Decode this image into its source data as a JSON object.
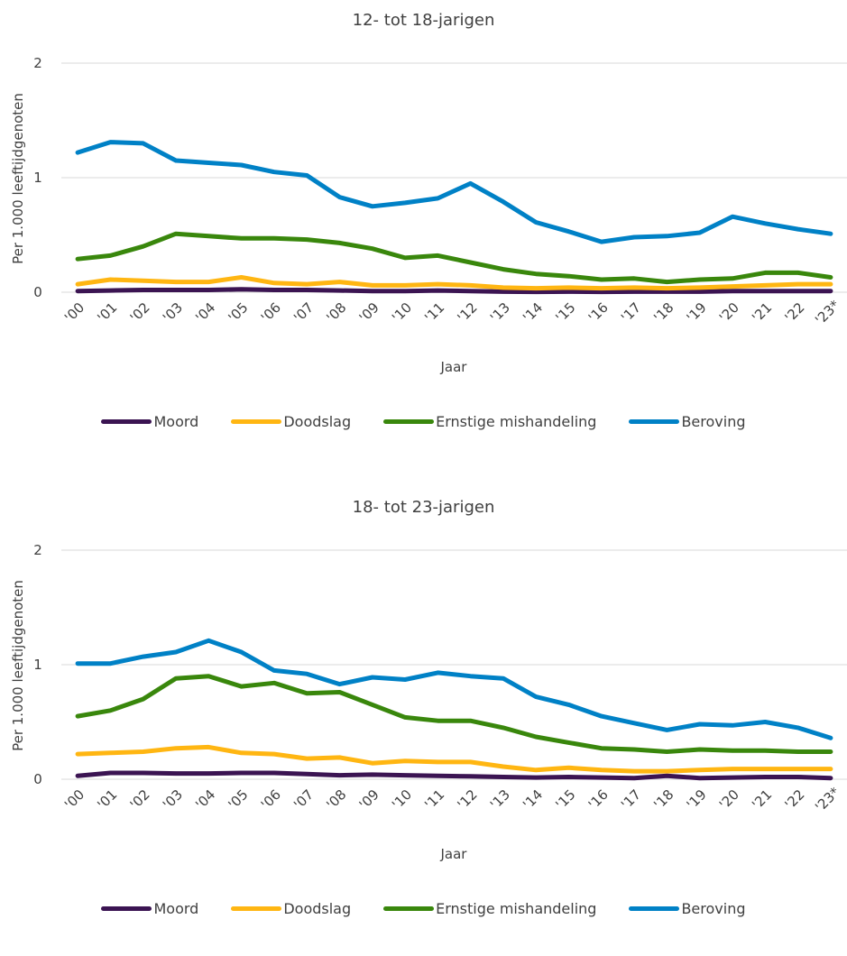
{
  "chart_data": [
    {
      "type": "line",
      "title": "12- tot 18-jarigen",
      "xlabel": "Jaar",
      "ylabel": "Per 1.000 leeftijdgenoten",
      "ylim": [
        0,
        2
      ],
      "yticks": [
        "0",
        "1",
        "2"
      ],
      "grid": "horizontal",
      "legend_position": "bottom",
      "categories": [
        "'00",
        "'01",
        "'02",
        "'03",
        "'04",
        "'05",
        "'06",
        "'07",
        "'08",
        "'09",
        "'10",
        "'11",
        "'12",
        "'13",
        "'14",
        "'15",
        "'16",
        "'17",
        "'18",
        "'19",
        "'20",
        "'21",
        "'22",
        "'23*"
      ],
      "series": [
        {
          "name": "Moord",
          "color": "#3b1452",
          "values": [
            0.01,
            0.015,
            0.02,
            0.02,
            0.02,
            0.025,
            0.02,
            0.02,
            0.015,
            0.01,
            0.01,
            0.015,
            0.01,
            0.005,
            0.003,
            0.005,
            0.003,
            0.005,
            0.005,
            0.005,
            0.01,
            0.01,
            0.01,
            0.01
          ]
        },
        {
          "name": "Doodslag",
          "color": "#ffb612",
          "values": [
            0.07,
            0.11,
            0.1,
            0.09,
            0.09,
            0.13,
            0.08,
            0.07,
            0.09,
            0.06,
            0.06,
            0.07,
            0.06,
            0.04,
            0.035,
            0.04,
            0.035,
            0.04,
            0.035,
            0.04,
            0.05,
            0.06,
            0.07,
            0.07
          ]
        },
        {
          "name": "Ernstige mishandeling",
          "color": "#39870c",
          "values": [
            0.29,
            0.32,
            0.4,
            0.51,
            0.49,
            0.47,
            0.47,
            0.46,
            0.43,
            0.38,
            0.3,
            0.32,
            0.26,
            0.2,
            0.16,
            0.14,
            0.11,
            0.12,
            0.09,
            0.11,
            0.12,
            0.17,
            0.17,
            0.13
          ]
        },
        {
          "name": "Beroving",
          "color": "#0081c6",
          "values": [
            1.22,
            1.31,
            1.3,
            1.15,
            1.13,
            1.11,
            1.05,
            1.02,
            0.83,
            0.75,
            0.78,
            0.82,
            0.95,
            0.79,
            0.61,
            0.53,
            0.44,
            0.48,
            0.49,
            0.52,
            0.66,
            0.6,
            0.55,
            0.51
          ]
        }
      ]
    },
    {
      "type": "line",
      "title": "18- tot 23-jarigen",
      "xlabel": "Jaar",
      "ylabel": "Per 1.000 leeftijdgenoten",
      "ylim": [
        0,
        2
      ],
      "yticks": [
        "0",
        "1",
        "2"
      ],
      "grid": "horizontal",
      "legend_position": "bottom",
      "categories": [
        "'00",
        "'01",
        "'02",
        "'03",
        "'04",
        "'05",
        "'06",
        "'07",
        "'08",
        "'09",
        "'10",
        "'11",
        "'12",
        "'13",
        "'14",
        "'15",
        "'16",
        "'17",
        "'18",
        "'19",
        "'20",
        "'21",
        "'22",
        "'23*"
      ],
      "series": [
        {
          "name": "Moord",
          "color": "#3b1452",
          "values": [
            0.03,
            0.055,
            0.055,
            0.05,
            0.05,
            0.055,
            0.055,
            0.045,
            0.035,
            0.04,
            0.035,
            0.03,
            0.025,
            0.02,
            0.015,
            0.02,
            0.015,
            0.01,
            0.03,
            0.01,
            0.015,
            0.02,
            0.02,
            0.01
          ]
        },
        {
          "name": "Doodslag",
          "color": "#ffb612",
          "values": [
            0.22,
            0.23,
            0.24,
            0.27,
            0.28,
            0.23,
            0.22,
            0.18,
            0.19,
            0.14,
            0.16,
            0.15,
            0.15,
            0.11,
            0.08,
            0.1,
            0.08,
            0.07,
            0.07,
            0.08,
            0.09,
            0.09,
            0.09,
            0.09
          ]
        },
        {
          "name": "Ernstige mishandeling",
          "color": "#39870c",
          "values": [
            0.55,
            0.6,
            0.7,
            0.88,
            0.9,
            0.81,
            0.84,
            0.75,
            0.76,
            0.65,
            0.54,
            0.51,
            0.51,
            0.45,
            0.37,
            0.32,
            0.27,
            0.26,
            0.24,
            0.26,
            0.25,
            0.25,
            0.24,
            0.24
          ]
        },
        {
          "name": "Beroving",
          "color": "#0081c6",
          "values": [
            1.01,
            1.01,
            1.07,
            1.11,
            1.21,
            1.11,
            0.95,
            0.92,
            0.83,
            0.89,
            0.87,
            0.93,
            0.9,
            0.88,
            0.72,
            0.65,
            0.55,
            0.49,
            0.43,
            0.48,
            0.47,
            0.5,
            0.45,
            0.36
          ]
        }
      ]
    }
  ]
}
